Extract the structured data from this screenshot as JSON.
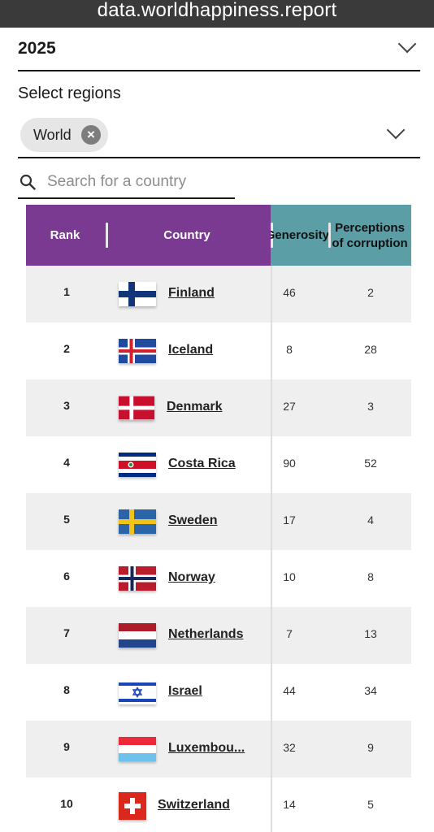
{
  "browser": {
    "url": "data.worldhappiness.report"
  },
  "year_select": {
    "value": "2025"
  },
  "regions": {
    "label": "Select regions",
    "chips": [
      "World"
    ]
  },
  "search": {
    "placeholder": "Search for a country",
    "value": ""
  },
  "table": {
    "headers": {
      "rank": "Rank",
      "country": "Country",
      "generosity": "Generosity",
      "corruption": "Perceptions of corruption"
    },
    "header_colors": {
      "main": "#7b3a91",
      "secondary": "#5b9ea6"
    },
    "rows": [
      {
        "rank": "1",
        "country": "Finland",
        "generosity": "46",
        "corruption": "2",
        "flag": "flag-finland-icon"
      },
      {
        "rank": "2",
        "country": "Iceland",
        "generosity": "8",
        "corruption": "28",
        "flag": "flag-iceland-icon"
      },
      {
        "rank": "3",
        "country": "Denmark",
        "generosity": "27",
        "corruption": "3",
        "flag": "flag-denmark-icon"
      },
      {
        "rank": "4",
        "country": "Costa Rica",
        "generosity": "90",
        "corruption": "52",
        "flag": "flag-costa-rica-icon"
      },
      {
        "rank": "5",
        "country": "Sweden",
        "generosity": "17",
        "corruption": "4",
        "flag": "flag-sweden-icon"
      },
      {
        "rank": "6",
        "country": "Norway",
        "generosity": "10",
        "corruption": "8",
        "flag": "flag-norway-icon"
      },
      {
        "rank": "7",
        "country": "Netherlands",
        "generosity": "7",
        "corruption": "13",
        "flag": "flag-netherlands-icon"
      },
      {
        "rank": "8",
        "country": "Israel",
        "generosity": "44",
        "corruption": "34",
        "flag": "flag-israel-icon"
      },
      {
        "rank": "9",
        "country": "Luxembou...",
        "generosity": "32",
        "corruption": "9",
        "flag": "flag-luxembourg-icon"
      },
      {
        "rank": "10",
        "country": "Switzerland",
        "generosity": "14",
        "corruption": "5",
        "flag": "flag-switzerland-icon"
      }
    ]
  }
}
